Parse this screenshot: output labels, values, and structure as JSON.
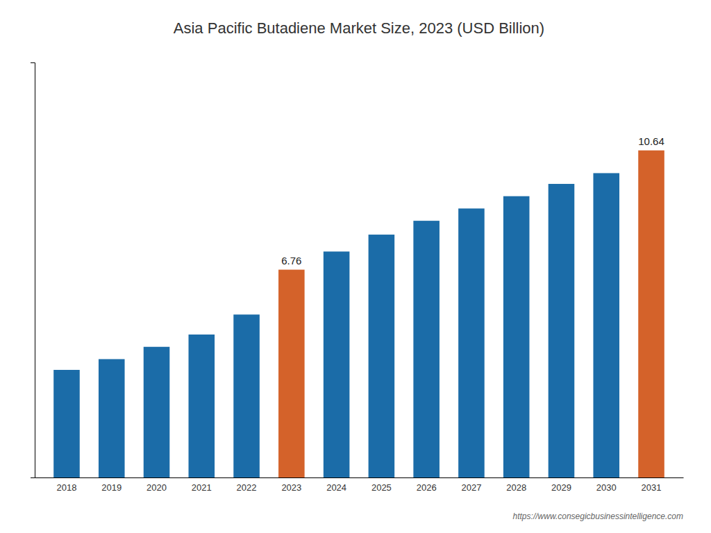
{
  "chart_data": {
    "type": "bar",
    "title": "Asia Pacific Butadiene Market Size, 2023 (USD Billion)",
    "categories": [
      "2018",
      "2019",
      "2020",
      "2021",
      "2022",
      "2023",
      "2024",
      "2025",
      "2026",
      "2027",
      "2028",
      "2029",
      "2030",
      "2031"
    ],
    "values": [
      3.5,
      3.85,
      4.25,
      4.65,
      5.3,
      6.76,
      7.35,
      7.9,
      8.35,
      8.75,
      9.15,
      9.55,
      9.9,
      10.64
    ],
    "colors": [
      "#1b6ca8",
      "#1b6ca8",
      "#1b6ca8",
      "#1b6ca8",
      "#1b6ca8",
      "#d4622a",
      "#1b6ca8",
      "#1b6ca8",
      "#1b6ca8",
      "#1b6ca8",
      "#1b6ca8",
      "#1b6ca8",
      "#1b6ca8",
      "#d4622a"
    ],
    "data_labels": true,
    "value_labels": [
      null,
      null,
      null,
      null,
      null,
      "6.76",
      null,
      null,
      null,
      null,
      null,
      null,
      null,
      "10.64"
    ],
    "annotations": [
      "https://www.consegicbusinessintelligence.com"
    ],
    "ylim": [
      0,
      13.5
    ],
    "yticks": [],
    "tick_labels": "x",
    "grid": false
  }
}
